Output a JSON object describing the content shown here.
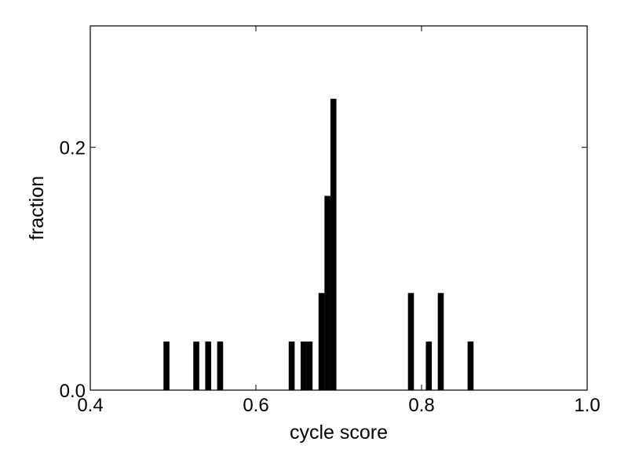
{
  "chart_data": {
    "type": "bar",
    "title": "",
    "xlabel": "cycle score",
    "ylabel": "fraction",
    "xlim": [
      0.4,
      1.0
    ],
    "ylim": [
      0.0,
      0.3
    ],
    "xticks": [
      0.4,
      0.6,
      0.8,
      1.0
    ],
    "xtick_labels": [
      "0.4",
      "0.6",
      "0.8",
      "1.0"
    ],
    "yticks": [
      0.0,
      0.2
    ],
    "ytick_labels": [
      "0.0",
      "0.2"
    ],
    "grid": false,
    "bar_color": "#000000",
    "bin_width": 0.0072,
    "bars": [
      {
        "x": 0.4884,
        "value": 0.04
      },
      {
        "x": 0.5244,
        "value": 0.04
      },
      {
        "x": 0.5388,
        "value": 0.04
      },
      {
        "x": 0.5532,
        "value": 0.04
      },
      {
        "x": 0.6396,
        "value": 0.04
      },
      {
        "x": 0.654,
        "value": 0.04
      },
      {
        "x": 0.6612,
        "value": 0.04
      },
      {
        "x": 0.6756,
        "value": 0.08
      },
      {
        "x": 0.6828,
        "value": 0.16
      },
      {
        "x": 0.69,
        "value": 0.24
      },
      {
        "x": 0.7836,
        "value": 0.08
      },
      {
        "x": 0.8052,
        "value": 0.04
      },
      {
        "x": 0.8196,
        "value": 0.08
      },
      {
        "x": 0.8556,
        "value": 0.04
      }
    ]
  }
}
